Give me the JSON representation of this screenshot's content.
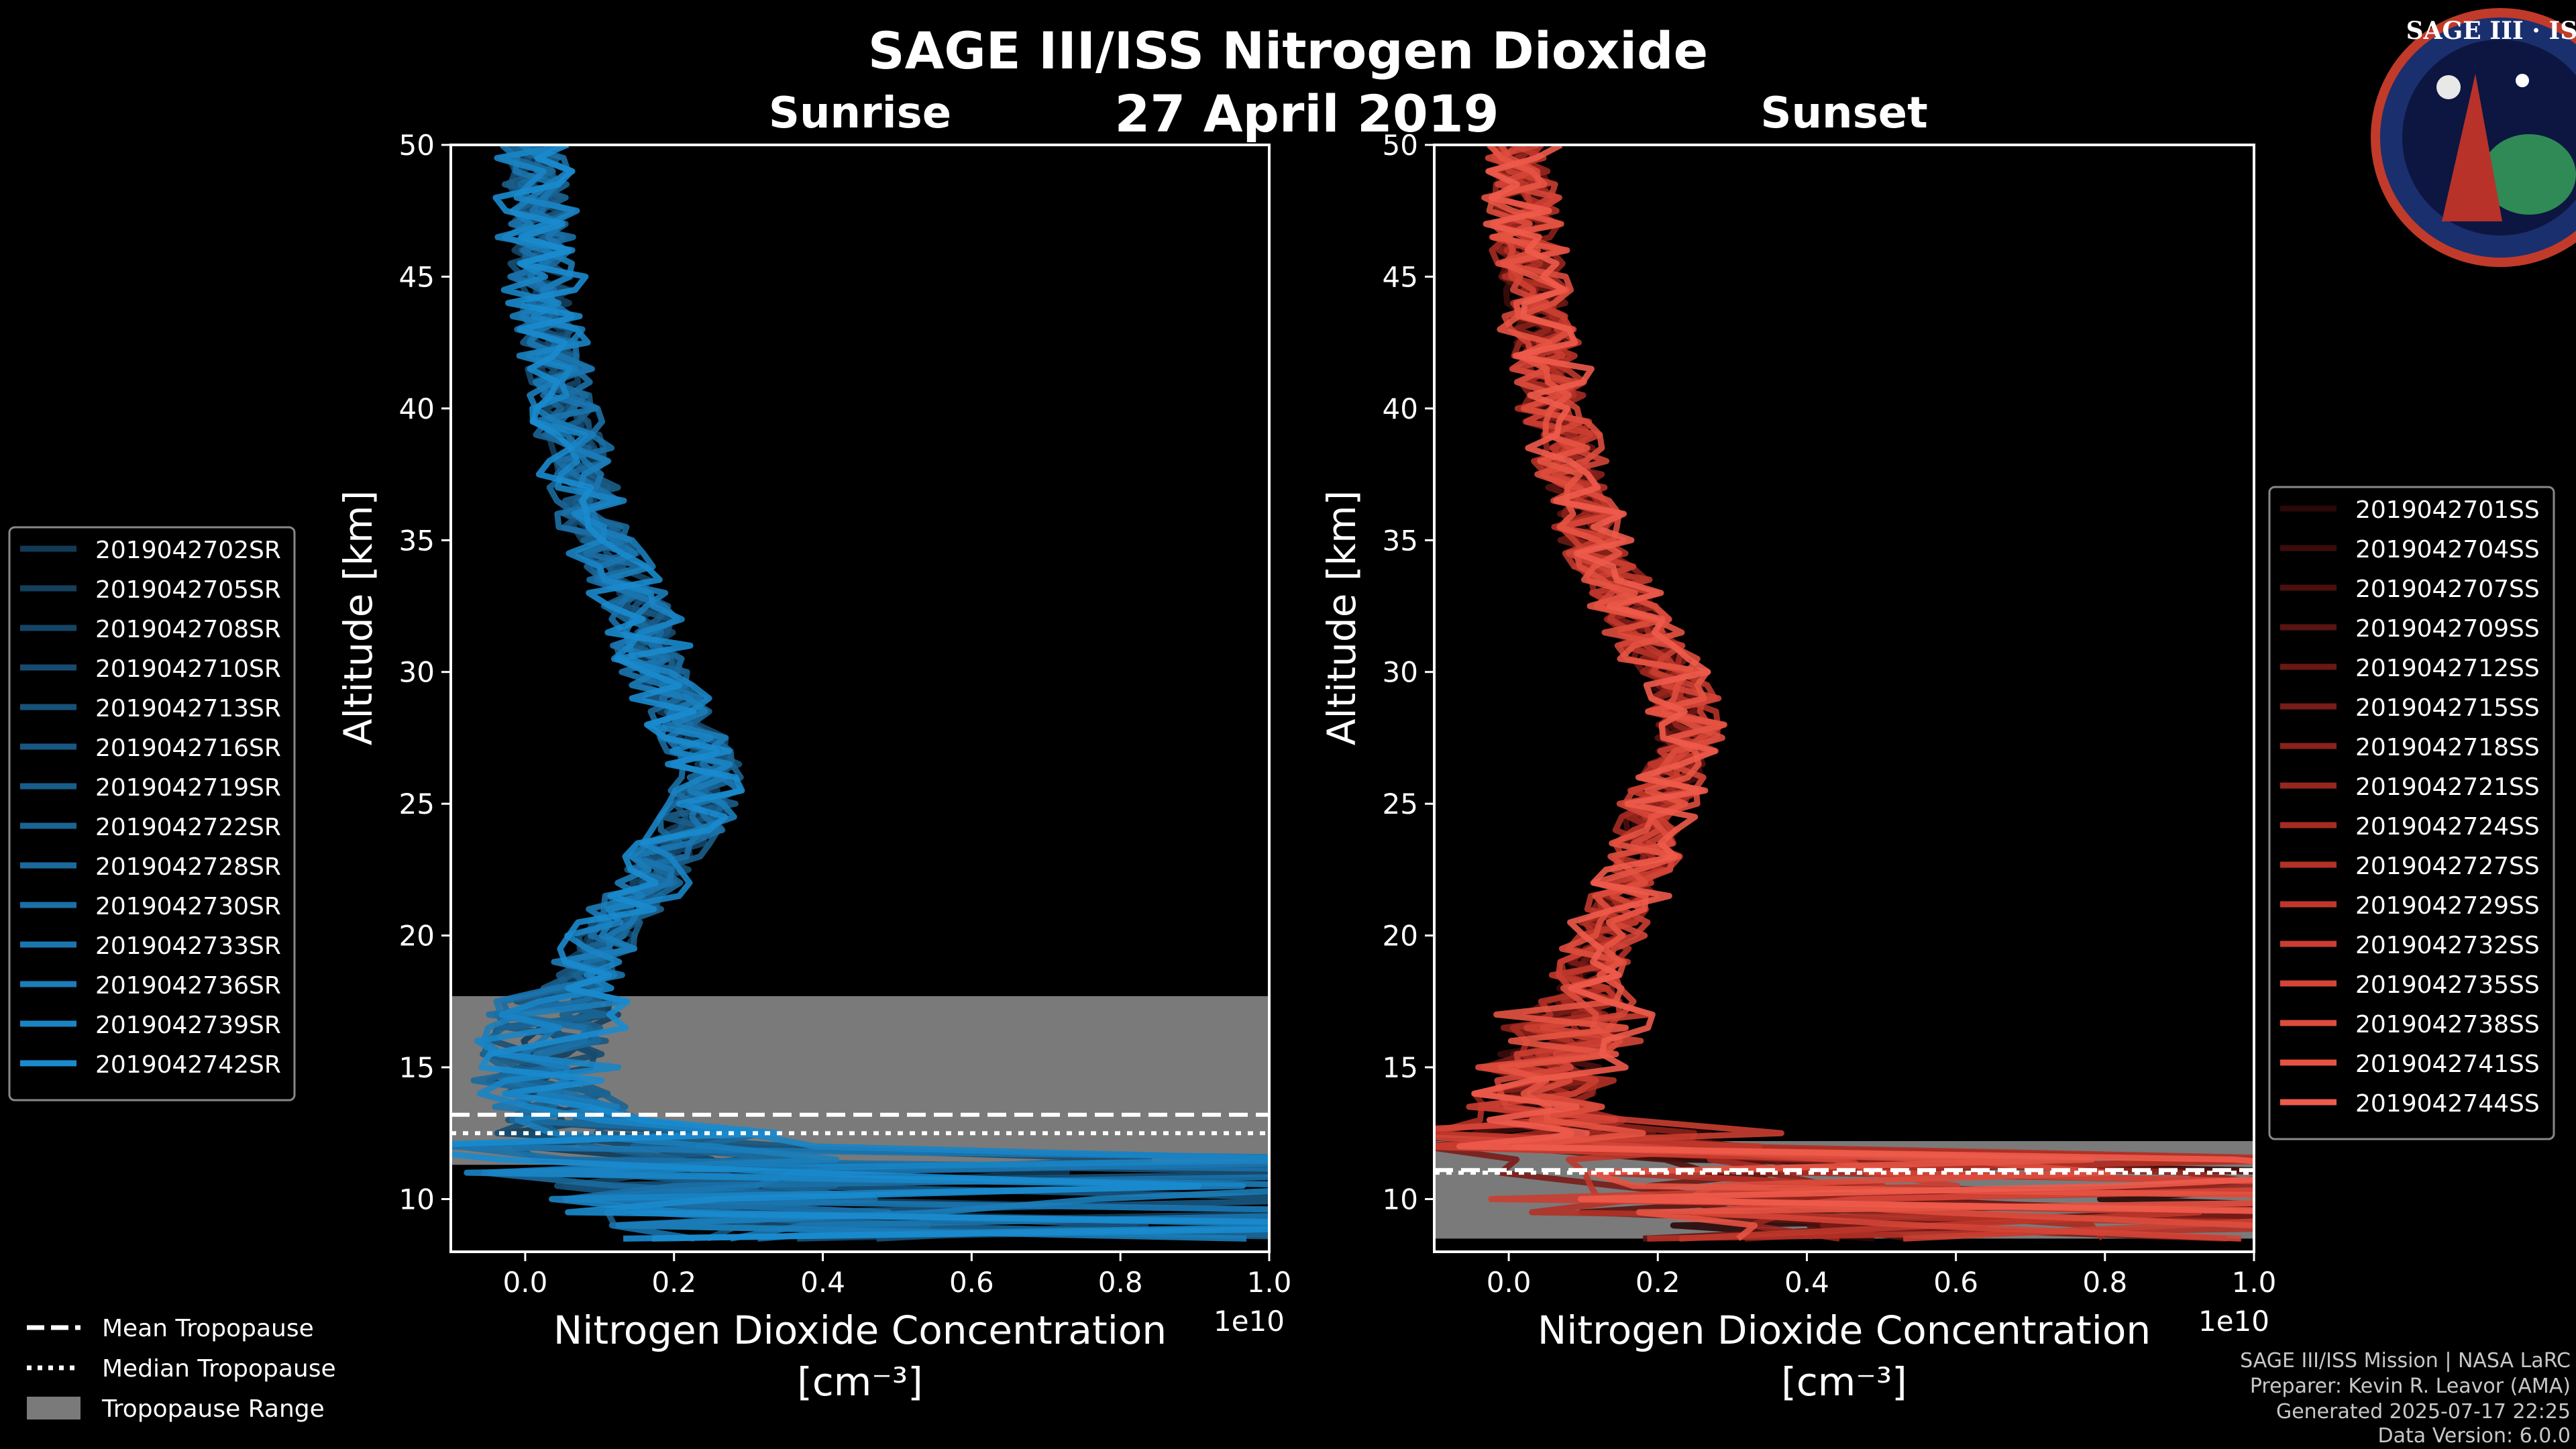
{
  "header": {
    "title": "SAGE III/ISS Nitrogen Dioxide",
    "date": "27 April 2019",
    "logo_text": "SAGE III · ISS"
  },
  "footer": {
    "line1": "SAGE III/ISS Mission | NASA LaRC",
    "line2": "Preparer: Kevin R. Leavor (AMA)",
    "line3": "Generated 2025-07-17 22:25",
    "line4": "Data Version: 6.0.0"
  },
  "colors": {
    "background": "#000000",
    "sunrise": "#1a90d6",
    "sunset": "#ef5a4a",
    "tropopause_range": "#7a7a7a"
  },
  "tropopause_legend": {
    "mean": "Mean Tropopause",
    "median": "Median Tropopause",
    "range": "Tropopause Range"
  },
  "chart_data": [
    {
      "type": "line",
      "title": "Sunrise",
      "xlabel": "Nitrogen Dioxide Concentration",
      "xlabel_unit": "[cm⁻³]",
      "ylabel": "Altitude [km]",
      "x_offset_label": "1e10",
      "xlim": [
        -0.1,
        1.0
      ],
      "ylim": [
        8,
        50
      ],
      "xticks": [
        0.0,
        0.2,
        0.4,
        0.6,
        0.8,
        1.0
      ],
      "xtick_labels": [
        "0.0",
        "0.2",
        "0.4",
        "0.6",
        "0.8",
        "1.0"
      ],
      "yticks": [
        10,
        15,
        20,
        25,
        30,
        35,
        40,
        45,
        50
      ],
      "ytick_labels": [
        "10",
        "15",
        "20",
        "25",
        "30",
        "35",
        "40",
        "45",
        "50"
      ],
      "tropopause": {
        "mean": 13.2,
        "median": 12.5,
        "range": [
          11.3,
          17.7
        ]
      },
      "legend_position": "left",
      "series_names": [
        "2019042702SR",
        "2019042705SR",
        "2019042708SR",
        "2019042710SR",
        "2019042713SR",
        "2019042716SR",
        "2019042719SR",
        "2019042722SR",
        "2019042728SR",
        "2019042730SR",
        "2019042733SR",
        "2019042736SR",
        "2019042739SR",
        "2019042742SR"
      ],
      "series_colors": [
        "#123a55",
        "#143f5d",
        "#154566",
        "#164b6f",
        "#175178",
        "#185781",
        "#195e8b",
        "#1a6494",
        "#1a6a9d",
        "#1b70a7",
        "#1b76b0",
        "#1b7db9",
        "#1a84c4",
        "#1a8bce"
      ],
      "mean_profile": {
        "altitude": [
          9,
          10,
          11,
          12,
          13,
          14,
          15,
          16,
          17,
          18,
          19,
          20,
          21,
          22,
          23,
          24,
          25,
          26,
          27,
          28,
          29,
          30,
          31,
          32,
          33,
          34,
          35,
          36,
          37,
          38,
          39,
          40,
          42,
          44,
          46,
          48,
          50
        ],
        "concentration_1e10": [
          0.3,
          0.25,
          0.2,
          0.12,
          0.06,
          0.03,
          0.02,
          0.03,
          0.05,
          0.07,
          0.09,
          0.11,
          0.14,
          0.17,
          0.19,
          0.22,
          0.24,
          0.25,
          0.24,
          0.22,
          0.2,
          0.18,
          0.17,
          0.16,
          0.14,
          0.12,
          0.1,
          0.09,
          0.08,
          0.07,
          0.06,
          0.05,
          0.04,
          0.03,
          0.02,
          0.015,
          0.01
        ]
      }
    },
    {
      "type": "line",
      "title": "Sunset",
      "xlabel": "Nitrogen Dioxide Concentration",
      "xlabel_unit": "[cm⁻³]",
      "ylabel": "Altitude [km]",
      "x_offset_label": "1e10",
      "xlim": [
        -0.1,
        1.0
      ],
      "ylim": [
        8,
        50
      ],
      "xticks": [
        0.0,
        0.2,
        0.4,
        0.6,
        0.8,
        1.0
      ],
      "xtick_labels": [
        "0.0",
        "0.2",
        "0.4",
        "0.6",
        "0.8",
        "1.0"
      ],
      "yticks": [
        10,
        15,
        20,
        25,
        30,
        35,
        40,
        45,
        50
      ],
      "ytick_labels": [
        "10",
        "15",
        "20",
        "25",
        "30",
        "35",
        "40",
        "45",
        "50"
      ],
      "tropopause": {
        "mean": 11.1,
        "median": 11.0,
        "range": [
          8.5,
          12.2
        ]
      },
      "legend_position": "right",
      "series_names": [
        "2019042701SS",
        "2019042704SS",
        "2019042707SS",
        "2019042709SS",
        "2019042712SS",
        "2019042715SS",
        "2019042718SS",
        "2019042721SS",
        "2019042724SS",
        "2019042727SS",
        "2019042729SS",
        "2019042732SS",
        "2019042735SS",
        "2019042738SS",
        "2019042741SS",
        "2019042744SS"
      ],
      "series_colors": [
        "#2a0808",
        "#3a0c0b",
        "#4a100e",
        "#5a1411",
        "#6a1814",
        "#7a1c17",
        "#8a211a",
        "#98261e",
        "#a62b22",
        "#b33126",
        "#bf372b",
        "#ca3e31",
        "#d44537",
        "#dd4c3d",
        "#e65343",
        "#ee5b4b"
      ],
      "mean_profile": {
        "altitude": [
          9,
          10,
          11,
          12,
          13,
          14,
          15,
          16,
          17,
          18,
          19,
          20,
          21,
          22,
          23,
          24,
          25,
          26,
          27,
          28,
          29,
          30,
          31,
          32,
          33,
          34,
          35,
          36,
          37,
          38,
          39,
          40,
          42,
          44,
          46,
          48,
          50
        ],
        "concentration_1e10": [
          0.35,
          0.28,
          0.2,
          0.1,
          0.06,
          0.04,
          0.05,
          0.07,
          0.09,
          0.1,
          0.11,
          0.13,
          0.15,
          0.17,
          0.18,
          0.19,
          0.2,
          0.22,
          0.23,
          0.24,
          0.23,
          0.21,
          0.19,
          0.17,
          0.15,
          0.13,
          0.11,
          0.1,
          0.09,
          0.08,
          0.07,
          0.06,
          0.05,
          0.035,
          0.025,
          0.02,
          0.015
        ]
      }
    }
  ]
}
